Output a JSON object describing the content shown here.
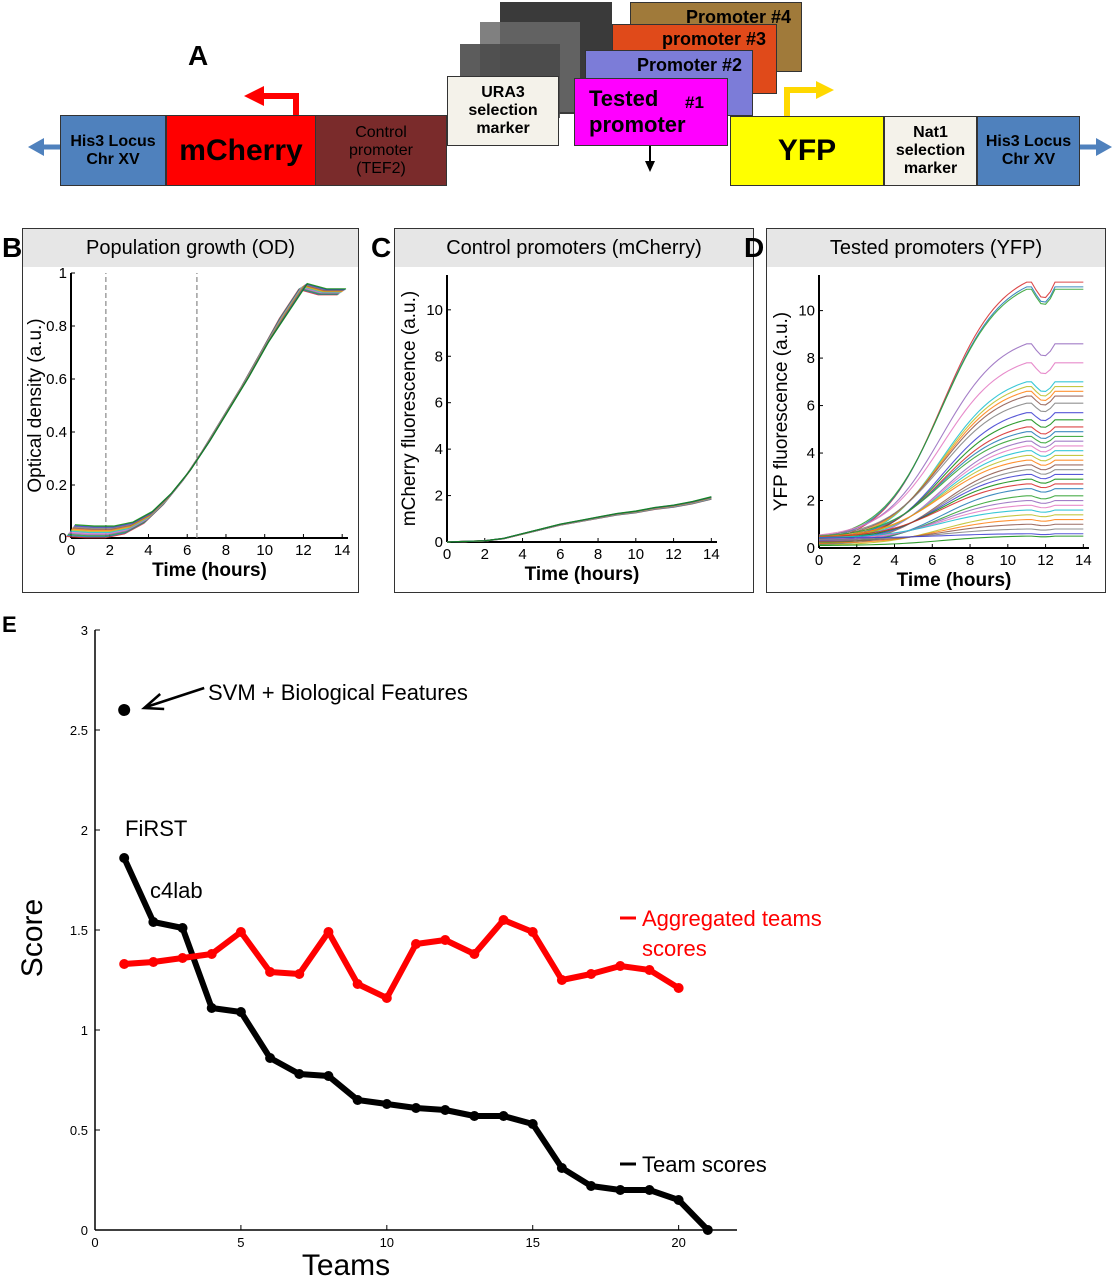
{
  "panelA": {
    "letter": "A",
    "elements": {
      "his3_left": "His3 Locus Chr XV",
      "mcherry": "mCherry",
      "control_promoter": "Control promoter (TEF2)",
      "ura3": "URA3 selection marker",
      "tested_promoter": "Tested promoter",
      "promoter_1_num": "#1",
      "promoter_2": "Promoter #2",
      "promoter_3": "promoter #3",
      "promoter_4": "Promoter #4",
      "yfp": "YFP",
      "nat1": "Nat1 selection marker",
      "his3_right": "His3 Locus Chr XV"
    },
    "colors": {
      "his3": "#4f81bd",
      "mcherry": "#ff0000",
      "control": "#7a2b2b",
      "tested": "#ff00ff",
      "yfp": "#ffff00",
      "p2": "#6f6fd0",
      "p3": "#e04a1a",
      "p4": "#a07a3a",
      "arrow_red": "#ff0000",
      "arrow_yellow": "#ffff00"
    }
  },
  "panelB": {
    "letter": "B",
    "chart_data": {
      "type": "line",
      "title": "Population growth (OD)",
      "xlabel": "Time (hours)",
      "ylabel": "Optical density (a.u.)",
      "xlim": [
        0,
        14.3
      ],
      "ylim": [
        0,
        1.0
      ],
      "xticks": [
        "0",
        "2",
        "4",
        "6",
        "8",
        "10",
        "12",
        "14"
      ],
      "yticks": [
        "0",
        "0.2",
        "0.4",
        "0.6",
        "0.8",
        "1"
      ],
      "vlines": [
        1.8,
        6.5
      ],
      "series_mean": {
        "x": [
          0,
          1,
          2,
          3,
          4,
          5,
          6,
          7,
          8,
          9,
          10,
          11,
          12,
          13,
          14
        ],
        "y": [
          0.03,
          0.025,
          0.025,
          0.04,
          0.08,
          0.15,
          0.24,
          0.35,
          0.47,
          0.59,
          0.72,
          0.84,
          0.95,
          0.93,
          0.93
        ]
      }
    }
  },
  "panelC": {
    "letter": "C",
    "chart_data": {
      "type": "line",
      "title": "Control promoters (mCherry)",
      "xlabel": "Time (hours)",
      "ylabel": "mCherry fluorescence (a.u.)",
      "xlim": [
        0,
        14.3
      ],
      "ylim": [
        0,
        11.5
      ],
      "xticks": [
        "0",
        "2",
        "4",
        "6",
        "8",
        "10",
        "12",
        "14"
      ],
      "yticks": [
        "0",
        "2",
        "4",
        "6",
        "8",
        "10"
      ],
      "series_mean": {
        "x": [
          0,
          2,
          3,
          4,
          5,
          6,
          7,
          8,
          9,
          10,
          11,
          12,
          13,
          14
        ],
        "y": [
          0.0,
          0.05,
          0.15,
          0.35,
          0.55,
          0.75,
          0.9,
          1.05,
          1.2,
          1.3,
          1.45,
          1.55,
          1.7,
          1.9
        ]
      }
    }
  },
  "panelD": {
    "letter": "D",
    "chart_data": {
      "type": "line",
      "title": "Tested promoters (YFP)",
      "xlabel": "Time (hours)",
      "ylabel": "YFP fluorescence (a.u.)",
      "xlim": [
        0,
        14.3
      ],
      "ylim": [
        0,
        11.5
      ],
      "xticks": [
        "0",
        "2",
        "4",
        "6",
        "8",
        "10",
        "12",
        "14"
      ],
      "yticks": [
        "0",
        "2",
        "4",
        "6",
        "8",
        "10"
      ],
      "final_levels": [
        11.2,
        11.0,
        10.9,
        8.6,
        7.8,
        7.0,
        6.8,
        6.6,
        6.4,
        6.1,
        5.7,
        5.4,
        5.1,
        4.9,
        4.7,
        4.5,
        4.3,
        4.1,
        3.9,
        3.7,
        3.5,
        3.3,
        3.1,
        2.9,
        2.7,
        2.5,
        2.2,
        2.0,
        1.8,
        1.6,
        1.4,
        1.2,
        1.0,
        0.8,
        0.6,
        0.5
      ]
    }
  },
  "panelE": {
    "letter": "E",
    "chart_data": {
      "type": "line",
      "xlabel": "Teams",
      "ylabel": "Score",
      "xlim": [
        0,
        22
      ],
      "ylim": [
        0,
        3
      ],
      "xticks": [
        "0",
        "5",
        "10",
        "15",
        "20"
      ],
      "yticks": [
        "0",
        "0.5",
        "1",
        "1.5",
        "2",
        "2.5",
        "3"
      ],
      "series": [
        {
          "name": "Team scores",
          "color": "#000000",
          "x": [
            1,
            2,
            3,
            4,
            5,
            6,
            7,
            8,
            9,
            10,
            11,
            12,
            13,
            14,
            15,
            16,
            17,
            18,
            19,
            20,
            21
          ],
          "y": [
            1.86,
            1.54,
            1.51,
            1.11,
            1.09,
            0.86,
            0.78,
            0.77,
            0.65,
            0.63,
            0.61,
            0.6,
            0.57,
            0.57,
            0.53,
            0.31,
            0.22,
            0.2,
            0.2,
            0.15,
            0.0
          ]
        },
        {
          "name": "Aggregated teams scores",
          "color": "#ff0000",
          "x": [
            1,
            2,
            3,
            4,
            5,
            6,
            7,
            8,
            9,
            10,
            11,
            12,
            13,
            14,
            15,
            16,
            17,
            18,
            19,
            20
          ],
          "y": [
            1.33,
            1.34,
            1.36,
            1.38,
            1.49,
            1.29,
            1.28,
            1.49,
            1.23,
            1.16,
            1.43,
            1.45,
            1.38,
            1.55,
            1.49,
            1.25,
            1.28,
            1.32,
            1.3,
            1.21
          ]
        }
      ],
      "point": {
        "x": 1,
        "y": 2.6
      },
      "annotations": {
        "svm": "SVM + Biological Features",
        "first": "FiRST",
        "c4lab": "c4lab",
        "legend_agg_1": "Aggregated teams",
        "legend_agg_2": "scores",
        "legend_team": "Team scores"
      }
    }
  }
}
